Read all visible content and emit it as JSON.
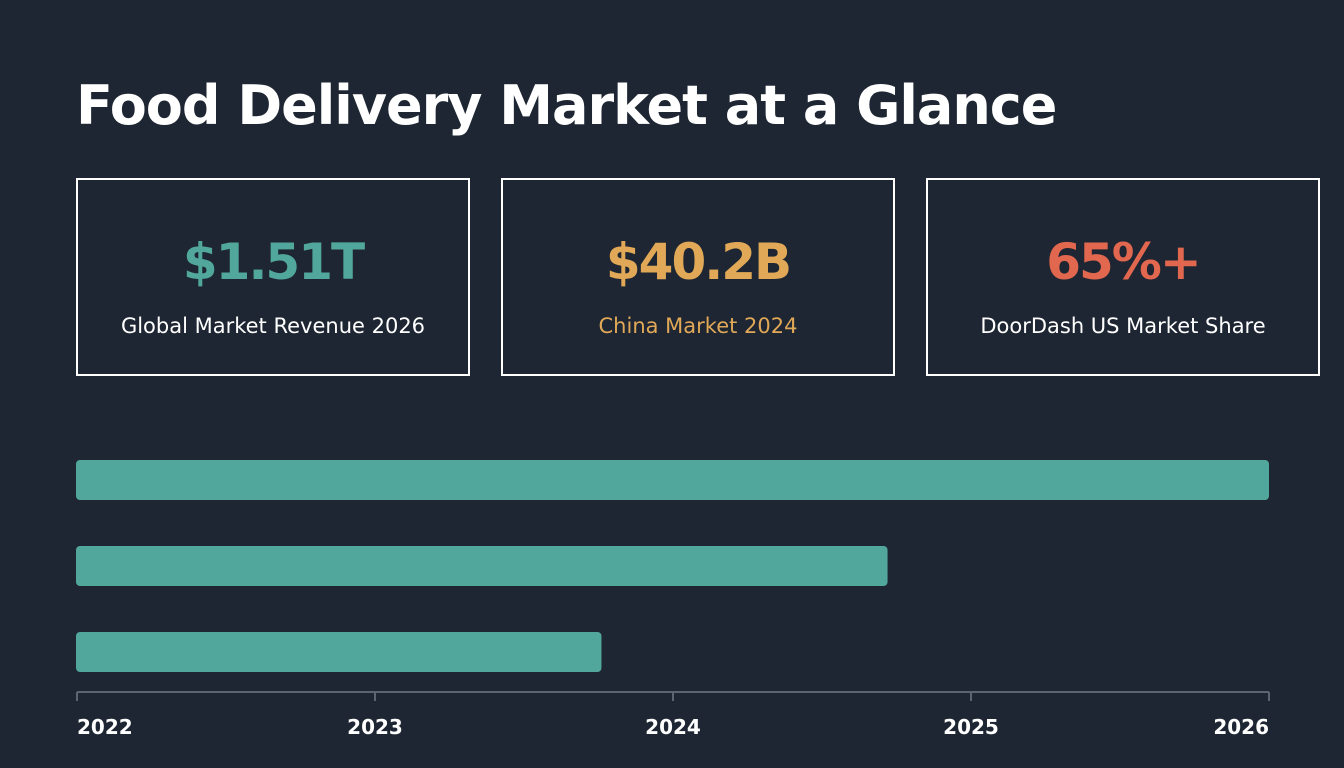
{
  "title": "Food Delivery Market at a Glance",
  "colors": {
    "background": "#1d2632",
    "teal": "#52a79c",
    "gold": "#e0a857",
    "red": "#e2674f",
    "axis": "#5b6470",
    "text": "#ffffff"
  },
  "stats": [
    {
      "value": "$1.51T",
      "label": "Global Market Revenue 2026",
      "value_color": "#52a79c",
      "label_color": "#ffffff"
    },
    {
      "value": "$40.2B",
      "label": "China Market 2024",
      "value_color": "#e0a857",
      "label_color": "#e0a857"
    },
    {
      "value": "65%+",
      "label": "DoorDash US Market Share",
      "value_color": "#e2674f",
      "label_color": "#ffffff"
    }
  ],
  "chart_data": {
    "type": "bar",
    "orientation": "horizontal",
    "x_ticks": [
      "2022",
      "2023",
      "2024",
      "2025",
      "2026"
    ],
    "xlim": [
      2022,
      2026
    ],
    "bars": [
      {
        "end": 2026.0
      },
      {
        "end": 2024.72
      },
      {
        "end": 2023.76
      }
    ],
    "bar_color": "#52a79c",
    "grid": false,
    "legend": "none"
  }
}
